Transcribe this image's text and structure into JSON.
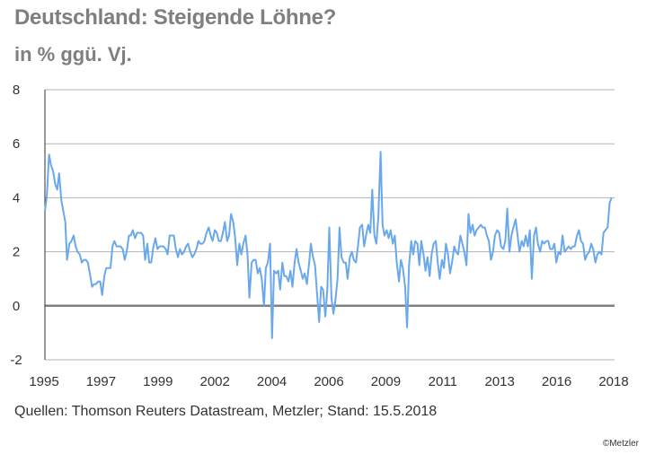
{
  "header": {
    "title": "Deutschland: Steigende Löhne?",
    "subtitle": "in % ggü. Vj."
  },
  "footer": {
    "source": "Quellen: Thomson Reuters Datastream, Metzler; Stand: 15.5.2018",
    "copyright": "©Metzler"
  },
  "colors": {
    "line": "#6aa8ec",
    "grid": "#b3b3b3",
    "zero_line": "#808080",
    "title": "#7f7f7f"
  },
  "chart_data": {
    "type": "line",
    "title": "Deutschland: Steigende Löhne?",
    "subtitle": "in % ggü. Vj.",
    "ylim": [
      -2,
      8
    ],
    "xlim": [
      1995,
      2018.2
    ],
    "y_ticks": [
      -2,
      0,
      2,
      4,
      6,
      8
    ],
    "x_tick_labels": [
      "1995",
      "1997",
      "1999",
      "2002",
      "2004",
      "2006",
      "2009",
      "2011",
      "2013",
      "2016",
      "2018"
    ],
    "grid": true,
    "series": [
      {
        "values": [
          [
            1995.0,
            3.5
          ],
          [
            1995.08,
            4.1
          ],
          [
            1995.17,
            5.6
          ],
          [
            1995.25,
            5.2
          ],
          [
            1995.33,
            5.0
          ],
          [
            1995.42,
            4.5
          ],
          [
            1995.5,
            4.3
          ],
          [
            1995.58,
            4.9
          ],
          [
            1995.67,
            3.9
          ],
          [
            1995.75,
            3.5
          ],
          [
            1995.83,
            3.1
          ],
          [
            1995.9,
            1.7
          ],
          [
            1996.0,
            2.3
          ],
          [
            1996.08,
            2.4
          ],
          [
            1996.17,
            2.6
          ],
          [
            1996.25,
            2.2
          ],
          [
            1996.33,
            2.0
          ],
          [
            1996.42,
            1.9
          ],
          [
            1996.5,
            1.6
          ],
          [
            1996.58,
            1.7
          ],
          [
            1996.67,
            1.7
          ],
          [
            1996.75,
            1.6
          ],
          [
            1996.83,
            1.2
          ],
          [
            1996.92,
            0.7
          ],
          [
            1997.0,
            0.8
          ],
          [
            1997.08,
            0.8
          ],
          [
            1997.17,
            0.9
          ],
          [
            1997.25,
            0.9
          ],
          [
            1997.33,
            0.4
          ],
          [
            1997.42,
            1.1
          ],
          [
            1997.5,
            1.4
          ],
          [
            1997.58,
            1.4
          ],
          [
            1997.67,
            1.4
          ],
          [
            1997.75,
            2.2
          ],
          [
            1997.83,
            2.4
          ],
          [
            1997.92,
            2.2
          ],
          [
            1998.0,
            2.2
          ],
          [
            1998.08,
            2.2
          ],
          [
            1998.17,
            2.1
          ],
          [
            1998.25,
            1.7
          ],
          [
            1998.33,
            2.0
          ],
          [
            1998.42,
            2.6
          ],
          [
            1998.5,
            2.6
          ],
          [
            1998.58,
            2.8
          ],
          [
            1998.67,
            2.5
          ],
          [
            1998.75,
            2.7
          ],
          [
            1998.83,
            2.7
          ],
          [
            1998.92,
            2.7
          ],
          [
            1999.0,
            2.6
          ],
          [
            1999.08,
            1.7
          ],
          [
            1999.17,
            2.3
          ],
          [
            1999.25,
            1.6
          ],
          [
            1999.33,
            1.6
          ],
          [
            1999.42,
            2.2
          ],
          [
            1999.5,
            2.5
          ],
          [
            1999.58,
            2.1
          ],
          [
            1999.67,
            2.2
          ],
          [
            1999.75,
            2.2
          ],
          [
            1999.83,
            2.2
          ],
          [
            1999.92,
            2.1
          ],
          [
            2000.0,
            1.9
          ],
          [
            2000.08,
            2.6
          ],
          [
            2000.17,
            2.6
          ],
          [
            2000.25,
            2.6
          ],
          [
            2000.33,
            2.1
          ],
          [
            2000.42,
            1.8
          ],
          [
            2000.5,
            2.1
          ],
          [
            2000.58,
            1.9
          ],
          [
            2000.67,
            2.0
          ],
          [
            2000.75,
            2.2
          ],
          [
            2000.83,
            2.3
          ],
          [
            2000.92,
            2.0
          ],
          [
            2001.0,
            1.8
          ],
          [
            2001.08,
            1.9
          ],
          [
            2001.17,
            2.1
          ],
          [
            2001.25,
            2.4
          ],
          [
            2001.33,
            2.3
          ],
          [
            2001.42,
            2.3
          ],
          [
            2001.5,
            2.4
          ],
          [
            2001.58,
            2.7
          ],
          [
            2001.67,
            2.9
          ],
          [
            2001.75,
            2.6
          ],
          [
            2001.83,
            2.4
          ],
          [
            2001.92,
            2.8
          ],
          [
            2002.0,
            2.7
          ],
          [
            2002.08,
            2.4
          ],
          [
            2002.17,
            2.4
          ],
          [
            2002.25,
            2.7
          ],
          [
            2002.33,
            3.1
          ],
          [
            2002.42,
            2.4
          ],
          [
            2002.5,
            2.6
          ],
          [
            2002.58,
            3.4
          ],
          [
            2002.67,
            3.1
          ],
          [
            2002.75,
            2.5
          ],
          [
            2002.83,
            1.5
          ],
          [
            2002.92,
            2.3
          ],
          [
            2003.0,
            1.9
          ],
          [
            2003.08,
            2.3
          ],
          [
            2003.17,
            2.6
          ],
          [
            2003.25,
            1.9
          ],
          [
            2003.33,
            0.3
          ],
          [
            2003.42,
            1.6
          ],
          [
            2003.5,
            1.7
          ],
          [
            2003.58,
            1.7
          ],
          [
            2003.67,
            1.2
          ],
          [
            2003.75,
            1.4
          ],
          [
            2003.83,
            1.0
          ],
          [
            2003.92,
            0.0
          ],
          [
            2004.0,
            1.4
          ],
          [
            2004.08,
            1.6
          ],
          [
            2004.17,
            2.3
          ],
          [
            2004.25,
            -1.2
          ],
          [
            2004.33,
            1.3
          ],
          [
            2004.42,
            1.2
          ],
          [
            2004.5,
            1.3
          ],
          [
            2004.58,
            0.6
          ],
          [
            2004.67,
            1.6
          ],
          [
            2004.75,
            1.1
          ],
          [
            2004.83,
            1.1
          ],
          [
            2004.92,
            0.9
          ],
          [
            2005.0,
            1.3
          ],
          [
            2005.08,
            0.7
          ],
          [
            2005.17,
            1.6
          ],
          [
            2005.25,
            2.1
          ],
          [
            2005.33,
            1.6
          ],
          [
            2005.42,
            1.3
          ],
          [
            2005.5,
            1.0
          ],
          [
            2005.58,
            1.2
          ],
          [
            2005.67,
            0.8
          ],
          [
            2005.75,
            1.5
          ],
          [
            2005.83,
            2.3
          ],
          [
            2005.92,
            1.8
          ],
          [
            2006.0,
            1.5
          ],
          [
            2006.08,
            0.5
          ],
          [
            2006.17,
            -0.6
          ],
          [
            2006.25,
            0.7
          ],
          [
            2006.33,
            0.6
          ],
          [
            2006.42,
            -0.4
          ],
          [
            2006.5,
            0.6
          ],
          [
            2006.58,
            2.9
          ],
          [
            2006.67,
            0.3
          ],
          [
            2006.75,
            -0.3
          ],
          [
            2006.83,
            0.2
          ],
          [
            2006.92,
            1.0
          ],
          [
            2007.0,
            2.9
          ],
          [
            2007.08,
            1.8
          ],
          [
            2007.17,
            1.6
          ],
          [
            2007.25,
            1.6
          ],
          [
            2007.33,
            1.0
          ],
          [
            2007.42,
            1.8
          ],
          [
            2007.5,
            2.0
          ],
          [
            2007.58,
            1.7
          ],
          [
            2007.67,
            1.6
          ],
          [
            2007.75,
            2.2
          ],
          [
            2007.83,
            2.9
          ],
          [
            2007.92,
            3.0
          ],
          [
            2008.0,
            2.2
          ],
          [
            2008.08,
            2.6
          ],
          [
            2008.17,
            3.0
          ],
          [
            2008.25,
            2.7
          ],
          [
            2008.33,
            4.3
          ],
          [
            2008.42,
            2.6
          ],
          [
            2008.5,
            2.3
          ],
          [
            2008.58,
            3.3
          ],
          [
            2008.67,
            5.7
          ],
          [
            2008.75,
            3.0
          ],
          [
            2008.83,
            2.6
          ],
          [
            2008.92,
            2.8
          ],
          [
            2009.0,
            2.5
          ],
          [
            2009.08,
            2.8
          ],
          [
            2009.17,
            2.3
          ],
          [
            2009.25,
            2.6
          ],
          [
            2009.33,
            1.6
          ],
          [
            2009.42,
            0.9
          ],
          [
            2009.5,
            1.7
          ],
          [
            2009.58,
            1.4
          ],
          [
            2009.67,
            0.7
          ],
          [
            2009.75,
            -0.8
          ],
          [
            2009.83,
            1.5
          ],
          [
            2009.92,
            2.4
          ],
          [
            2010.0,
            1.9
          ],
          [
            2010.08,
            2.4
          ],
          [
            2010.17,
            2.3
          ],
          [
            2010.25,
            1.5
          ],
          [
            2010.33,
            2.4
          ],
          [
            2010.42,
            1.9
          ],
          [
            2010.5,
            1.3
          ],
          [
            2010.58,
            1.8
          ],
          [
            2010.67,
            1.1
          ],
          [
            2010.75,
            1.9
          ],
          [
            2010.83,
            2.3
          ],
          [
            2010.92,
            2.4
          ],
          [
            2011.0,
            1.6
          ],
          [
            2011.08,
            1.0
          ],
          [
            2011.17,
            1.7
          ],
          [
            2011.25,
            1.4
          ],
          [
            2011.33,
            2.3
          ],
          [
            2011.42,
            1.9
          ],
          [
            2011.5,
            1.2
          ],
          [
            2011.58,
            1.6
          ],
          [
            2011.67,
            2.2
          ],
          [
            2011.75,
            2.0
          ],
          [
            2011.83,
            1.9
          ],
          [
            2011.92,
            2.6
          ],
          [
            2012.0,
            2.3
          ],
          [
            2012.08,
            2.0
          ],
          [
            2012.17,
            1.5
          ],
          [
            2012.25,
            3.4
          ],
          [
            2012.33,
            2.7
          ],
          [
            2012.42,
            3.0
          ],
          [
            2012.5,
            2.6
          ],
          [
            2012.58,
            2.8
          ],
          [
            2012.67,
            2.9
          ],
          [
            2012.75,
            3.0
          ],
          [
            2012.83,
            2.9
          ],
          [
            2012.92,
            2.9
          ],
          [
            2013.0,
            2.6
          ],
          [
            2013.08,
            2.4
          ],
          [
            2013.17,
            1.7
          ],
          [
            2013.25,
            2.0
          ],
          [
            2013.33,
            2.6
          ],
          [
            2013.42,
            2.8
          ],
          [
            2013.5,
            2.7
          ],
          [
            2013.58,
            2.2
          ],
          [
            2013.67,
            2.1
          ],
          [
            2013.75,
            2.4
          ],
          [
            2013.83,
            3.6
          ],
          [
            2013.92,
            2.0
          ],
          [
            2014.0,
            2.6
          ],
          [
            2014.08,
            2.9
          ],
          [
            2014.17,
            3.2
          ],
          [
            2014.25,
            2.6
          ],
          [
            2014.33,
            2.0
          ],
          [
            2014.42,
            2.4
          ],
          [
            2014.5,
            2.2
          ],
          [
            2014.58,
            2.6
          ],
          [
            2014.67,
            2.2
          ],
          [
            2014.75,
            2.8
          ],
          [
            2014.83,
            1.0
          ],
          [
            2014.92,
            2.6
          ],
          [
            2015.0,
            2.9
          ],
          [
            2015.08,
            2.3
          ],
          [
            2015.17,
            2.0
          ],
          [
            2015.25,
            2.4
          ],
          [
            2015.33,
            2.3
          ],
          [
            2015.42,
            2.4
          ],
          [
            2015.5,
            2.4
          ],
          [
            2015.58,
            2.1
          ],
          [
            2015.67,
            2.1
          ],
          [
            2015.75,
            2.3
          ],
          [
            2015.83,
            1.6
          ],
          [
            2015.92,
            2.0
          ],
          [
            2016.0,
            1.9
          ],
          [
            2016.08,
            2.6
          ],
          [
            2016.17,
            2.0
          ],
          [
            2016.25,
            2.1
          ],
          [
            2016.33,
            2.2
          ],
          [
            2016.42,
            2.1
          ],
          [
            2016.5,
            2.2
          ],
          [
            2016.58,
            2.2
          ],
          [
            2016.67,
            2.6
          ],
          [
            2016.75,
            2.8
          ],
          [
            2016.83,
            2.4
          ],
          [
            2016.92,
            2.3
          ],
          [
            2017.0,
            1.7
          ],
          [
            2017.08,
            1.9
          ],
          [
            2017.17,
            2.0
          ],
          [
            2017.25,
            2.3
          ],
          [
            2017.33,
            2.1
          ],
          [
            2017.42,
            1.6
          ],
          [
            2017.5,
            1.9
          ],
          [
            2017.58,
            2.0
          ],
          [
            2017.67,
            1.9
          ],
          [
            2017.75,
            2.7
          ],
          [
            2017.83,
            2.8
          ],
          [
            2017.92,
            2.9
          ],
          [
            2018.0,
            3.8
          ],
          [
            2018.08,
            4.0
          ]
        ]
      }
    ]
  }
}
